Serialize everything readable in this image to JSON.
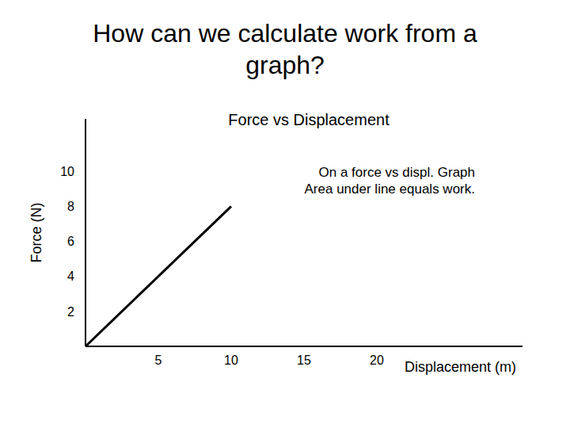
{
  "chart_data": {
    "type": "line",
    "page_title": "How can we calculate work from a graph?",
    "title": "Force vs Displacement",
    "annotation": [
      "On a force vs displ. Graph",
      "Area under line equals work."
    ],
    "x_label": "Displacement (m)",
    "y_label": "Force (N)",
    "x": [
      0,
      10
    ],
    "values": [
      0,
      8
    ],
    "color": "#000000",
    "xlim": [
      0,
      30
    ],
    "xticks": [
      5,
      10,
      15,
      20
    ],
    "ylim": [
      0,
      13
    ],
    "yticks": [
      2,
      4,
      6,
      8,
      10
    ],
    "grid": false
  }
}
